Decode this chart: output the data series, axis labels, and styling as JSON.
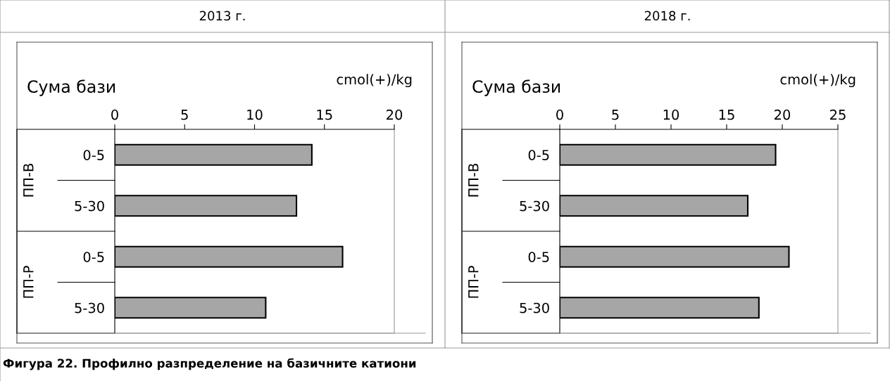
{
  "chart_data": [
    {
      "type": "bar",
      "orientation": "horizontal",
      "title": "2013 г.",
      "subtitle": "Сума бази",
      "xlabel": "cmol(+)/kg",
      "categories": [
        "0-5",
        "5-30",
        "0-5",
        "5-30"
      ],
      "values": [
        14.1,
        13.0,
        16.3,
        10.8
      ],
      "color": "#a6a6a6",
      "xlim": [
        0,
        20
      ],
      "xticks": [
        0,
        5,
        10,
        15,
        20
      ],
      "grid": false,
      "legend": false,
      "annotations": [
        "ПП-В",
        "ПП-Р",
        "Фигура 22. Профилно разпределение на базичните катиони"
      ]
    },
    {
      "type": "bar",
      "orientation": "horizontal",
      "title": "2018 г.",
      "subtitle": "Сума бази",
      "xlabel": "cmol(+)/kg",
      "categories": [
        "0-5",
        "5-30",
        "0-5",
        "5-30"
      ],
      "values": [
        19.4,
        16.9,
        20.6,
        17.9
      ],
      "color": "#a6a6a6",
      "xlim": [
        0,
        25
      ],
      "xticks": [
        0,
        5,
        10,
        15,
        20,
        25
      ],
      "grid": false,
      "legend": false,
      "annotations": [
        "ПП-В",
        "ПП-Р"
      ]
    }
  ]
}
